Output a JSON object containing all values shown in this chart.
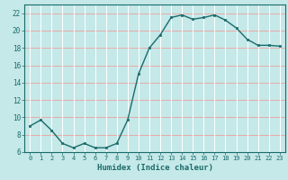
{
  "x": [
    0,
    1,
    2,
    3,
    4,
    5,
    6,
    7,
    8,
    9,
    10,
    11,
    12,
    13,
    14,
    15,
    16,
    17,
    18,
    19,
    20,
    21,
    22,
    23
  ],
  "y": [
    9,
    9.7,
    8.5,
    7,
    6.5,
    7,
    6.5,
    6.5,
    7,
    9.7,
    15,
    18,
    19.5,
    21.5,
    21.8,
    21.3,
    21.5,
    21.8,
    21.2,
    20.3,
    19,
    18.3,
    18.3,
    18.2
  ],
  "ylim": [
    6,
    23
  ],
  "yticks": [
    6,
    8,
    10,
    12,
    14,
    16,
    18,
    20,
    22
  ],
  "xticks": [
    0,
    1,
    2,
    3,
    4,
    5,
    6,
    7,
    8,
    9,
    10,
    11,
    12,
    13,
    14,
    15,
    16,
    17,
    18,
    19,
    20,
    21,
    22,
    23
  ],
  "xlabel": "Humidex (Indice chaleur)",
  "line_color": "#1a6b6b",
  "marker_color": "#1a6b6b",
  "bg_color": "#c5e8e8",
  "grid_white_color": "#ffffff",
  "grid_red_color": "#e8aaaa",
  "spine_color": "#1a6b6b"
}
